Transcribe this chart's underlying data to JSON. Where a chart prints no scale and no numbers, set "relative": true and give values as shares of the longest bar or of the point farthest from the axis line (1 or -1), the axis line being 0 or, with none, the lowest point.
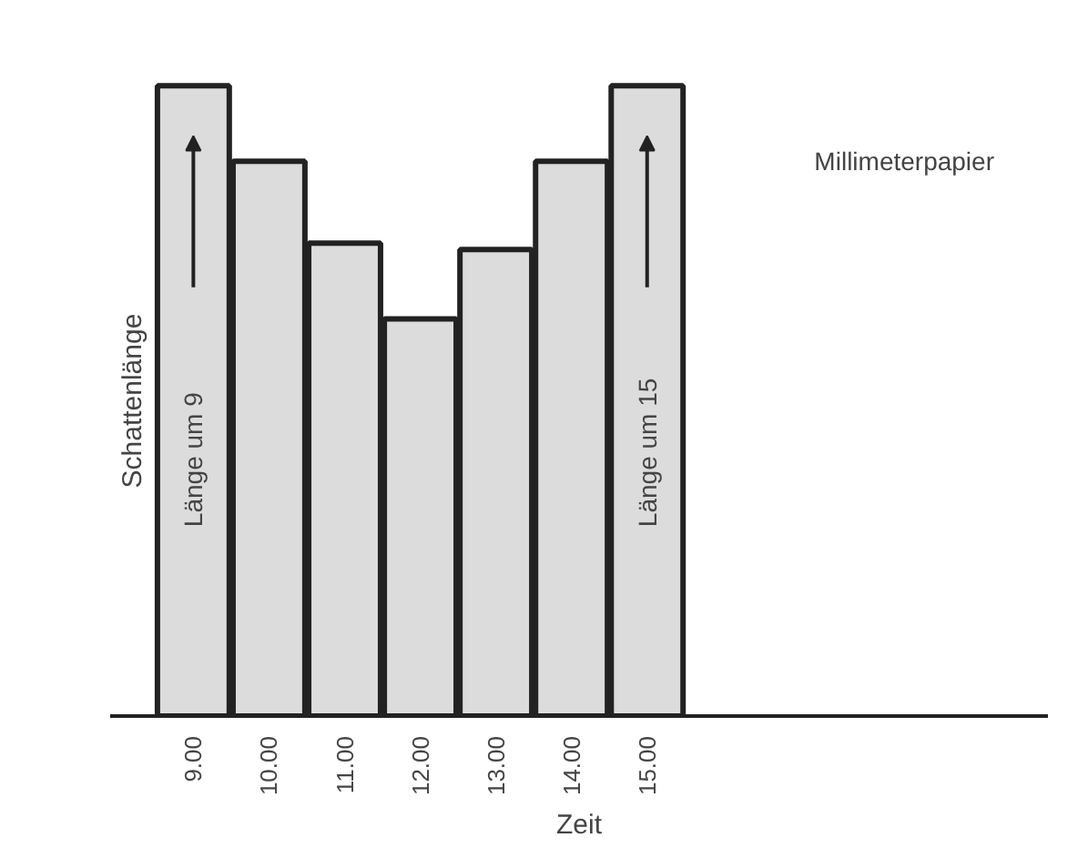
{
  "chart_data": {
    "type": "bar",
    "relative": true,
    "xlabel": "Zeit",
    "ylabel": "Schattenlänge",
    "categories": [
      "9.00",
      "10.00",
      "11.00",
      "12.00",
      "13.00",
      "14.00",
      "15.00"
    ],
    "values": [
      1.0,
      0.88,
      0.75,
      0.63,
      0.74,
      0.88,
      1.0
    ],
    "color": "#dcdcdc",
    "annotations": [
      "Länge um 9",
      "Länge um 15",
      "Millimeterpapier"
    ]
  }
}
